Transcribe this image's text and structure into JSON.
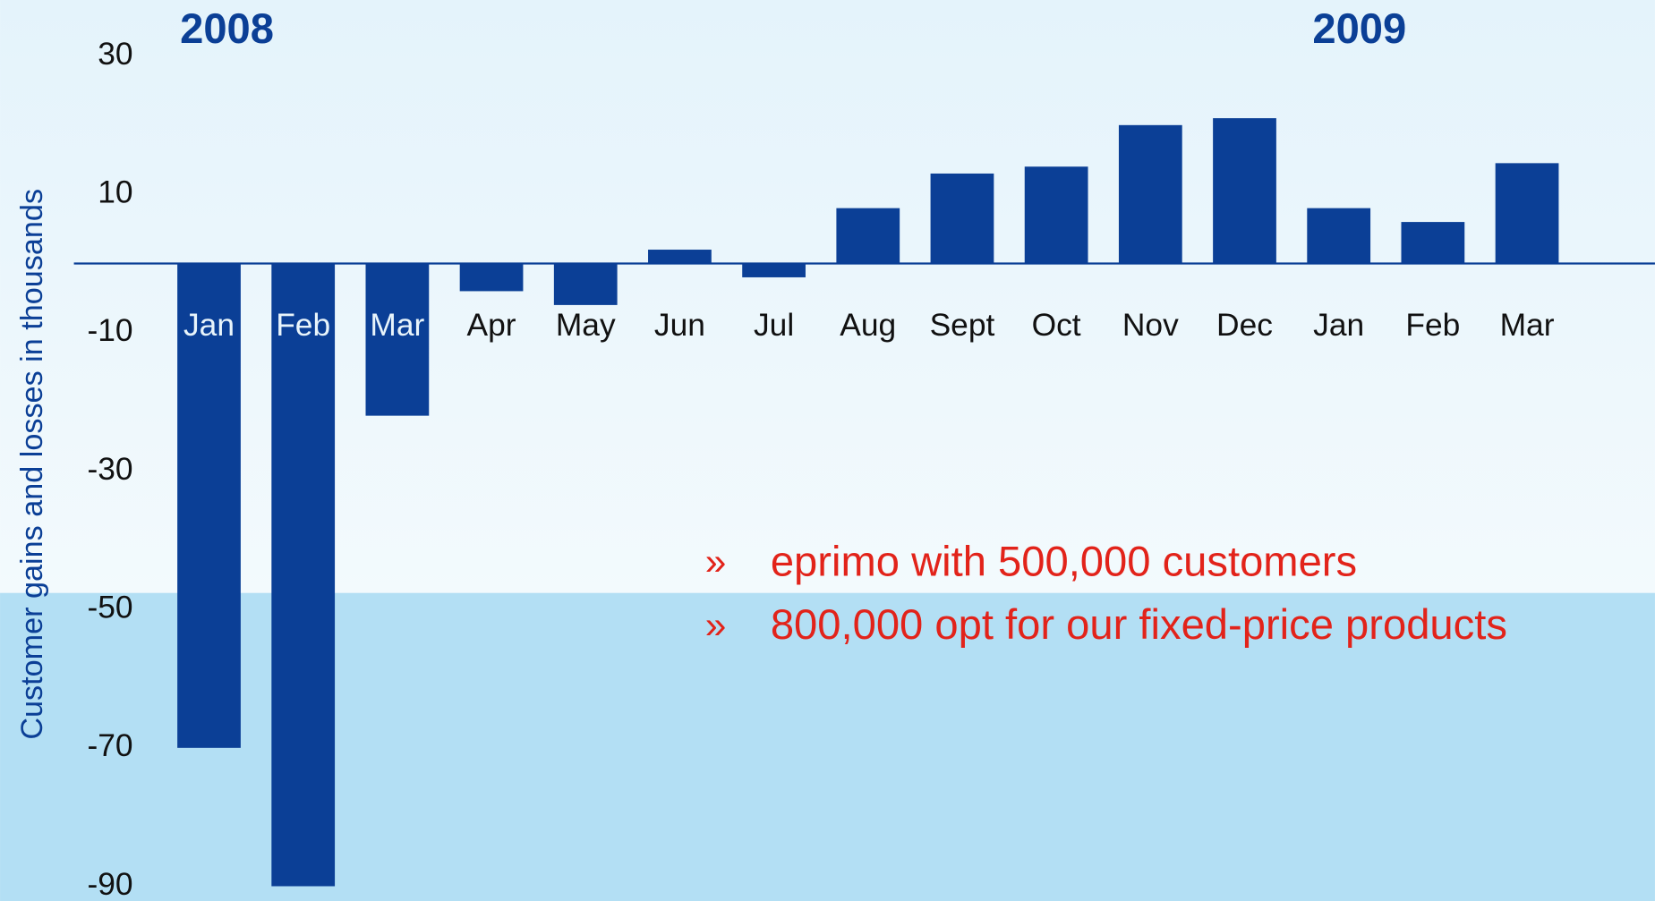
{
  "chart_data": {
    "type": "bar",
    "y_label": "Customer gains and losses in thousands",
    "annotations": [
      "2008",
      "2009"
    ],
    "bullet_marker": "»",
    "bullets": [
      "eprimo with 500,000 customers",
      "800,000 opt for our fixed-price products"
    ],
    "categories": [
      "Jan",
      "Feb",
      "Mar",
      "Apr",
      "May",
      "Jun",
      "Jul",
      "Aug",
      "Sept",
      "Oct",
      "Nov",
      "Dec",
      "Jan",
      "Feb",
      "Mar"
    ],
    "values": [
      -70,
      -90,
      -22,
      -4,
      -6,
      2,
      -2,
      8,
      13,
      14,
      20,
      21,
      8,
      6,
      14.5
    ],
    "color": "#0b3f96",
    "ylim": [
      -90,
      30
    ],
    "yticks": [
      30,
      10,
      -10,
      -30,
      -50,
      -70,
      -90
    ],
    "grid": false
  }
}
